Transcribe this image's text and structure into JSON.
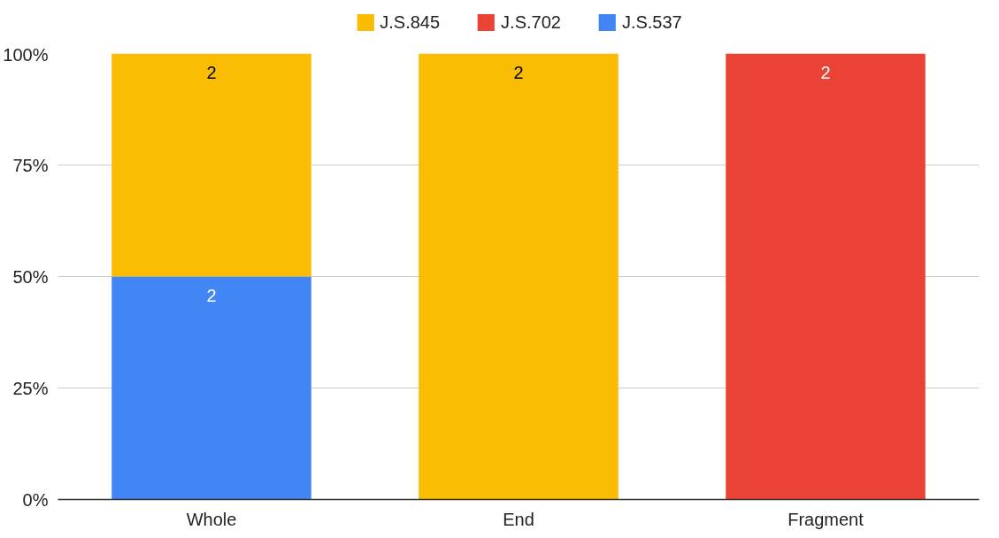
{
  "chart_data": {
    "type": "bar",
    "stacked": true,
    "categories": [
      "Whole",
      "End",
      "Fragment"
    ],
    "series": [
      {
        "name": "J.S.537",
        "color": "#4285f4",
        "values": [
          50,
          0,
          0
        ]
      },
      {
        "name": "J.S.702",
        "color": "#ea4335",
        "values": [
          0,
          0,
          100
        ]
      },
      {
        "name": "J.S.845",
        "color": "#fbbc04",
        "values": [
          50,
          100,
          0
        ]
      }
    ],
    "annotations": [
      {
        "text": "2",
        "x": "Whole",
        "y": 50
      },
      {
        "text": "2",
        "x": "Whole",
        "y": 100
      },
      {
        "text": "2",
        "x": "End",
        "y": 100
      },
      {
        "text": "2",
        "x": "Fragment",
        "y": 100
      }
    ],
    "ylim": [
      0,
      100
    ],
    "yticks": [
      {
        "value": 0,
        "label": "0%"
      },
      {
        "value": 25,
        "label": "25%"
      },
      {
        "value": 50,
        "label": "50%"
      },
      {
        "value": 75,
        "label": "75%"
      },
      {
        "value": 100,
        "label": "100%"
      }
    ],
    "grid": "y",
    "legend": "top"
  }
}
